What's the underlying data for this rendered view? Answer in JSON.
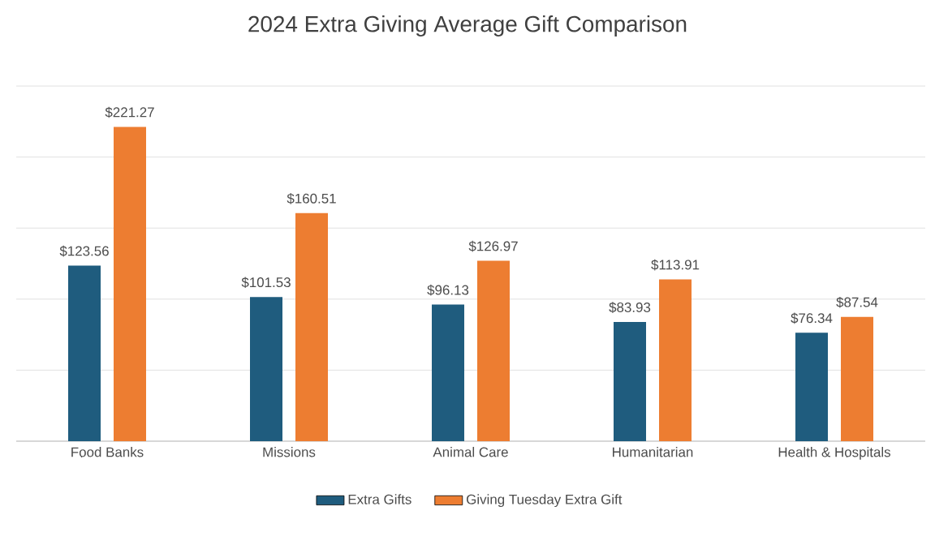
{
  "chart_data": {
    "type": "bar",
    "title": "2024 Extra Giving Average Gift Comparison",
    "categories": [
      "Food Banks",
      "Missions",
      "Animal Care",
      "Humanitarian",
      "Health & Hospitals"
    ],
    "series": [
      {
        "name": "Extra Gifts",
        "color": "#1f5c7e",
        "values": [
          123.56,
          101.53,
          96.13,
          83.93,
          76.34
        ],
        "value_labels": [
          "$123.56",
          "$101.53",
          "$96.13",
          "$83.93",
          "$76.34"
        ]
      },
      {
        "name": "Giving Tuesday Extra Gift",
        "color": "#ed7d31",
        "values": [
          221.27,
          160.51,
          126.97,
          113.91,
          87.54
        ],
        "value_labels": [
          "$221.27",
          "$160.51",
          "$126.97",
          "$113.91",
          "$87.54"
        ]
      }
    ],
    "grid": "y",
    "legend": "bottom",
    "tick_labels": "x"
  }
}
